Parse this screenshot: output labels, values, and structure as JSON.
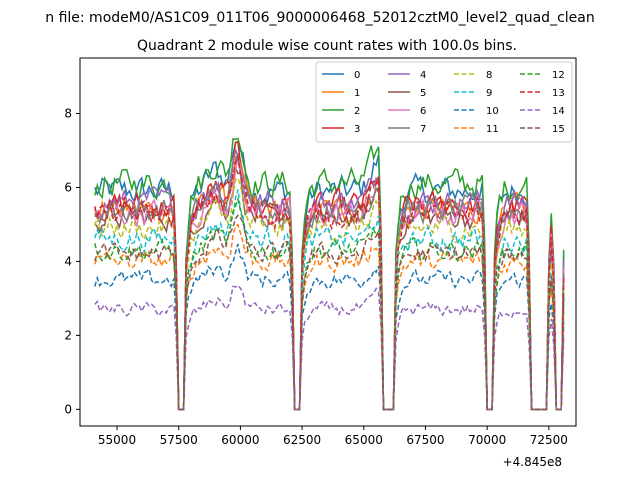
{
  "chart_data": {
    "type": "line",
    "suptitle": "n file: modeM0/AS1C09_011T06_9000006468_52012cztM0_level2_quad_clean",
    "title": "Quadrant 2 module wise count rates with 100.0s bins.",
    "xlabel": "",
    "ylabel": "",
    "x_offset_label": "+4.845e8",
    "xlim": [
      53500,
      73600
    ],
    "ylim": [
      -0.45,
      9.5
    ],
    "x_ticks": [
      55000,
      57500,
      60000,
      62500,
      65000,
      67500,
      70000,
      72500
    ],
    "x_tick_labels": [
      "55000",
      "57500",
      "60000",
      "62500",
      "65000",
      "67500",
      "70000",
      "72500"
    ],
    "y_ticks": [
      0,
      2,
      4,
      6,
      8
    ],
    "y_tick_labels": [
      "0",
      "2",
      "4",
      "6",
      "8"
    ],
    "grid": false,
    "legend_placement": "top-right",
    "data_start": 54100,
    "data_step": 100,
    "data_end": 73100,
    "gaps": [
      [
        57500,
        57700
      ],
      [
        62200,
        62400
      ],
      [
        65800,
        66200
      ],
      [
        70000,
        70200
      ],
      [
        71800,
        72400
      ],
      [
        72800,
        73000
      ]
    ],
    "series": [
      {
        "name": "0",
        "color": "#1f77b4",
        "style": "solid",
        "level": 5.9
      },
      {
        "name": "1",
        "color": "#ff7f0e",
        "style": "solid",
        "level": 5.4
      },
      {
        "name": "2",
        "color": "#2ca02c",
        "style": "solid",
        "level": 6.1
      },
      {
        "name": "3",
        "color": "#d62728",
        "style": "solid",
        "level": 5.5
      },
      {
        "name": "4",
        "color": "#9467bd",
        "style": "solid",
        "level": 5.6
      },
      {
        "name": "5",
        "color": "#8c564b",
        "style": "solid",
        "level": 5.2
      },
      {
        "name": "6",
        "color": "#e377c2",
        "style": "solid",
        "level": 5.3
      },
      {
        "name": "7",
        "color": "#7f7f7f",
        "style": "solid",
        "level": 5.4
      },
      {
        "name": "8",
        "color": "#bcbd22",
        "style": "dashed",
        "level": 4.9
      },
      {
        "name": "9",
        "color": "#17becf",
        "style": "dashed",
        "level": 4.6
      },
      {
        "name": "10",
        "color": "#1f77b4",
        "style": "dashed",
        "level": 3.5
      },
      {
        "name": "11",
        "color": "#ff7f0e",
        "style": "dashed",
        "level": 4.0
      },
      {
        "name": "12",
        "color": "#2ca02c",
        "style": "dashed",
        "level": 4.3
      },
      {
        "name": "13",
        "color": "#d62728",
        "style": "dashed",
        "level": 5.3
      },
      {
        "name": "14",
        "color": "#9467bd",
        "style": "dashed",
        "level": 2.7
      },
      {
        "name": "15",
        "color": "#8c564b",
        "style": "dashed",
        "level": 4.2
      }
    ]
  }
}
